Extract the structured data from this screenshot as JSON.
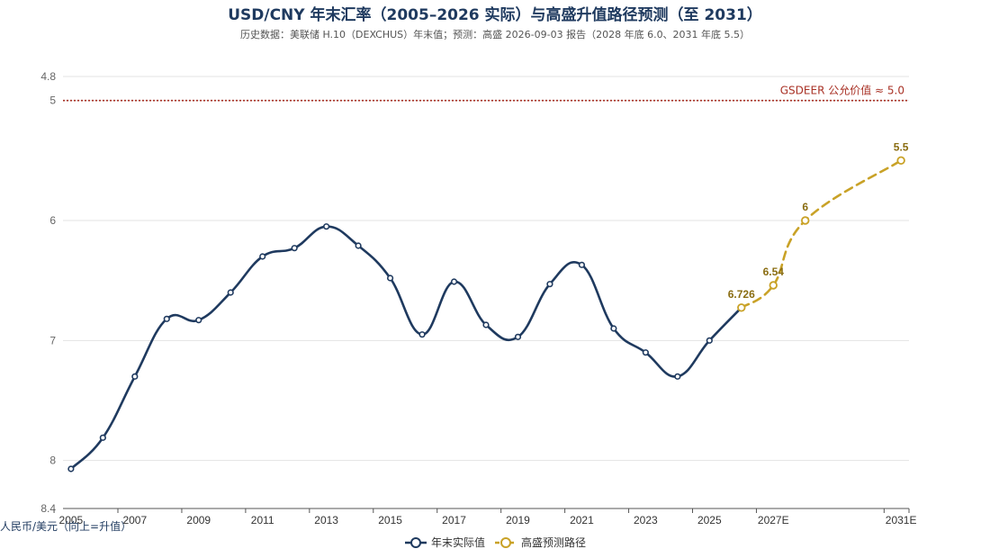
{
  "chart_data": {
    "type": "line",
    "title": "USD/CNY 年末汇率（2005–2026 实际）与高盛升值路径预测（至 2031）",
    "subtitle": "历史数据：美联储 H.10（DEXCHUS）年末值；预测：高盛 2026-09-03 报告（2028 年底 6.0、2031 年底 5.5）",
    "ylabel": "人民币/美元（向上=升值）",
    "y_inverted": true,
    "ylim": [
      4.8,
      8.4
    ],
    "y_ticks": [
      "4.8",
      "5",
      "6",
      "7",
      "8",
      "8.4"
    ],
    "x_ticks": [
      "2005",
      "2007",
      "2009",
      "2011",
      "2013",
      "2015",
      "2017",
      "2019",
      "2021",
      "2023",
      "2025",
      "2027E",
      "2031E"
    ],
    "reference_line": {
      "value": 5.0,
      "label": "GSDEER 公允价值 ≈ 5.0",
      "color": "#a93226"
    },
    "series": [
      {
        "name": "年末实际值",
        "color": "#1f3a5f",
        "x": [
          "2005",
          "2006",
          "2007",
          "2008",
          "2009",
          "2010",
          "2011",
          "2012",
          "2013",
          "2014",
          "2015",
          "2016",
          "2017",
          "2018",
          "2019",
          "2020",
          "2021",
          "2022",
          "2023",
          "2024",
          "2025",
          "2026"
        ],
        "values": [
          8.07,
          7.81,
          7.3,
          6.82,
          6.83,
          6.6,
          6.3,
          6.23,
          6.05,
          6.21,
          6.48,
          6.95,
          6.51,
          6.87,
          6.97,
          6.53,
          6.37,
          6.9,
          7.1,
          7.3,
          7.0,
          6.726
        ]
      },
      {
        "name": "高盛预测路径",
        "color": "#c9a227",
        "dashed": true,
        "x": [
          "2026",
          "2027E",
          "2028",
          "2031E"
        ],
        "values": [
          6.726,
          6.54,
          6.0,
          5.5
        ],
        "labels": [
          "6.726",
          "6.54",
          "6",
          "5.5"
        ]
      }
    ],
    "legend": {
      "position": "bottom-center",
      "items": [
        "年末实际值",
        "高盛预测路径"
      ]
    },
    "grid": true
  }
}
